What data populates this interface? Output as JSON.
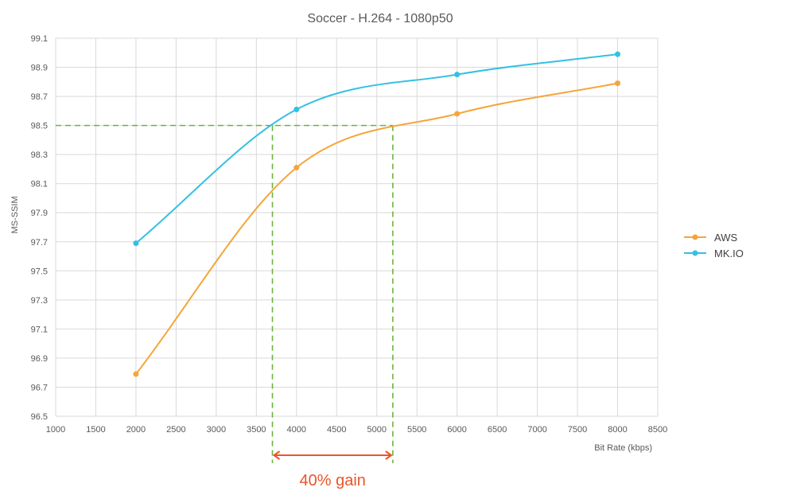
{
  "chart_data": {
    "type": "line",
    "title": "Soccer - H.264 - 1080p50",
    "xlabel": "Bit Rate (kbps)",
    "ylabel": "MS-SSIM",
    "xlim": [
      1000,
      8500
    ],
    "ylim": [
      96.5,
      99.1
    ],
    "xticks": [
      1000,
      1500,
      2000,
      2500,
      3000,
      3500,
      4000,
      4500,
      5000,
      5500,
      6000,
      6500,
      7000,
      7500,
      8000,
      8500
    ],
    "yticks": [
      96.5,
      96.7,
      96.9,
      97.1,
      97.3,
      97.5,
      97.7,
      97.9,
      98.1,
      98.3,
      98.5,
      98.7,
      98.9,
      99.1
    ],
    "grid": true,
    "smooth": true,
    "legend": "right",
    "x": [
      2000,
      4000,
      6000,
      8000
    ],
    "series": [
      {
        "name": "AWS",
        "color": "#f5a53a",
        "values": [
          96.79,
          98.21,
          98.58,
          98.79
        ]
      },
      {
        "name": "MK.IO",
        "color": "#33c0e3",
        "values": [
          97.69,
          98.61,
          98.85,
          98.99
        ]
      }
    ],
    "reference": {
      "color": "#6ab43e",
      "y": 98.5,
      "x_values": [
        3700,
        5200
      ]
    },
    "annotation": {
      "text": "40% gain",
      "color": "#e8562a",
      "x_range": [
        3700,
        5200
      ]
    }
  }
}
